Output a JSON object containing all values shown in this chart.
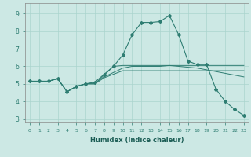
{
  "xlabel": "Humidex (Indice chaleur)",
  "bg_color": "#cce8e4",
  "line_color": "#2e7d72",
  "grid_color": "#aad4ce",
  "xlim": [
    -0.5,
    23.5
  ],
  "ylim": [
    2.8,
    9.6
  ],
  "yticks": [
    3,
    4,
    5,
    6,
    7,
    8,
    9
  ],
  "xticks": [
    0,
    1,
    2,
    3,
    4,
    5,
    6,
    7,
    8,
    9,
    10,
    11,
    12,
    13,
    14,
    15,
    16,
    17,
    18,
    19,
    20,
    21,
    22,
    23
  ],
  "series": [
    {
      "x": [
        0,
        1,
        2,
        3,
        4,
        5,
        6,
        7,
        8,
        9,
        10,
        11,
        12,
        13,
        14,
        15,
        16,
        17,
        18,
        19,
        20,
        21,
        22,
        23
      ],
      "y": [
        5.15,
        5.15,
        5.15,
        5.3,
        4.55,
        4.85,
        5.0,
        5.0,
        5.5,
        6.0,
        6.05,
        6.05,
        6.05,
        6.05,
        6.05,
        6.05,
        6.05,
        6.05,
        6.05,
        6.05,
        6.05,
        6.05,
        6.05,
        6.05
      ],
      "marker": false
    },
    {
      "x": [
        0,
        1,
        2,
        3,
        4,
        5,
        6,
        7,
        8,
        9,
        10,
        11,
        12,
        13,
        14,
        15,
        16,
        17,
        18,
        19,
        20,
        21,
        22,
        23
      ],
      "y": [
        5.15,
        5.15,
        5.15,
        5.3,
        4.55,
        4.85,
        5.0,
        5.1,
        5.55,
        6.0,
        6.65,
        7.8,
        8.5,
        8.5,
        8.55,
        8.9,
        7.8,
        6.3,
        6.1,
        6.1,
        4.7,
        4.0,
        3.55,
        3.2
      ],
      "marker": true
    },
    {
      "x": [
        0,
        1,
        2,
        3,
        4,
        5,
        6,
        7,
        8,
        9,
        10,
        11,
        12,
        13,
        14,
        15,
        16,
        17,
        18,
        19,
        20,
        21,
        22,
        23
      ],
      "y": [
        5.15,
        5.15,
        5.15,
        5.3,
        4.55,
        4.85,
        5.0,
        5.0,
        5.35,
        5.55,
        5.75,
        5.75,
        5.75,
        5.75,
        5.75,
        5.75,
        5.75,
        5.75,
        5.75,
        5.75,
        5.75,
        5.75,
        5.75,
        5.75
      ],
      "marker": false
    },
    {
      "x": [
        0,
        1,
        2,
        3,
        4,
        5,
        6,
        7,
        8,
        9,
        10,
        11,
        12,
        13,
        14,
        15,
        16,
        17,
        18,
        19,
        20,
        21,
        22,
        23
      ],
      "y": [
        5.15,
        5.15,
        5.15,
        5.3,
        4.55,
        4.85,
        5.0,
        5.05,
        5.4,
        5.65,
        5.9,
        6.0,
        6.0,
        6.0,
        6.0,
        6.05,
        6.0,
        5.95,
        5.9,
        5.8,
        5.7,
        5.6,
        5.5,
        5.4
      ],
      "marker": false
    }
  ]
}
